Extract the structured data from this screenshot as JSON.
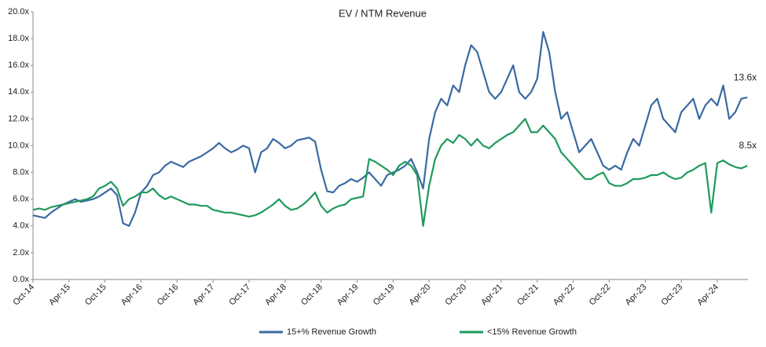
{
  "chart_data": {
    "type": "line",
    "title": "EV / NTM Revenue",
    "categories": [
      "Oct-14",
      null,
      null,
      null,
      null,
      null,
      "Apr-15",
      null,
      null,
      null,
      null,
      null,
      "Oct-15",
      null,
      null,
      null,
      null,
      null,
      "Apr-16",
      null,
      null,
      null,
      null,
      null,
      "Oct-16",
      null,
      null,
      null,
      null,
      null,
      "Apr-17",
      null,
      null,
      null,
      null,
      null,
      "Oct-17",
      null,
      null,
      null,
      null,
      null,
      "Apr-18",
      null,
      null,
      null,
      null,
      null,
      "Oct-18",
      null,
      null,
      null,
      null,
      null,
      "Apr-19",
      null,
      null,
      null,
      null,
      null,
      "Oct-19",
      null,
      null,
      null,
      null,
      null,
      "Apr-20",
      null,
      null,
      null,
      null,
      null,
      "Oct-20",
      null,
      null,
      null,
      null,
      null,
      "Apr-21",
      null,
      null,
      null,
      null,
      null,
      "Oct-21",
      null,
      null,
      null,
      null,
      null,
      "Apr-22",
      null,
      null,
      null,
      null,
      null,
      "Oct-22",
      null,
      null,
      null,
      null,
      null,
      "Apr-23",
      null,
      null,
      null,
      null,
      null,
      "Oct-23",
      null,
      null,
      null,
      null,
      null,
      "Apr-24",
      null,
      null,
      null,
      null,
      null
    ],
    "series": [
      {
        "name": "15+% Revenue Growth",
        "color": "#3a6aa3",
        "values": [
          4.8,
          4.7,
          4.6,
          5.0,
          5.3,
          5.6,
          5.8,
          6.0,
          5.8,
          5.9,
          6.0,
          6.2,
          6.5,
          6.8,
          6.3,
          4.2,
          4.0,
          5.0,
          6.5,
          7.0,
          7.8,
          8.0,
          8.5,
          8.8,
          8.6,
          8.4,
          8.8,
          9.0,
          9.2,
          9.5,
          9.8,
          10.2,
          9.8,
          9.5,
          9.7,
          10.0,
          9.8,
          8.0,
          9.5,
          9.8,
          10.5,
          10.2,
          9.8,
          10.0,
          10.4,
          10.5,
          10.6,
          10.3,
          8.2,
          6.6,
          6.5,
          7.0,
          7.2,
          7.5,
          7.3,
          7.6,
          8.0,
          7.5,
          7.0,
          7.8,
          8.0,
          8.2,
          8.5,
          9.0,
          8.0,
          6.8,
          10.5,
          12.5,
          13.5,
          13.0,
          14.5,
          14.0,
          16.0,
          17.5,
          17.0,
          15.5,
          14.0,
          13.5,
          14.0,
          15.0,
          16.0,
          14.0,
          13.5,
          14.0,
          15.0,
          18.5,
          17.0,
          14.0,
          12.0,
          12.5,
          11.0,
          9.5,
          10.0,
          10.5,
          9.5,
          8.5,
          8.2,
          8.5,
          8.2,
          9.5,
          10.5,
          10.0,
          11.5,
          13.0,
          13.5,
          12.0,
          11.5,
          11.0,
          12.5,
          13.0,
          13.5,
          12.0,
          13.0,
          13.5,
          13.0,
          14.5,
          12.0,
          12.5,
          13.5,
          13.6
        ],
        "value_labels": [
          null,
          null,
          null,
          null,
          null,
          null,
          null,
          null,
          null,
          null,
          null,
          null,
          null,
          null,
          null,
          null,
          null,
          null,
          null,
          null,
          null,
          null,
          null,
          null,
          null,
          null,
          null,
          null,
          null,
          null,
          null,
          null,
          null,
          null,
          null,
          null,
          null,
          null,
          null,
          null,
          null,
          null,
          null,
          null,
          null,
          null,
          null,
          null,
          null,
          null,
          null,
          null,
          null,
          null,
          null,
          null,
          null,
          null,
          null,
          null,
          null,
          null,
          null,
          null,
          null,
          null,
          null,
          null,
          null,
          null,
          null,
          null,
          null,
          null,
          null,
          null,
          null,
          null,
          null,
          null,
          null,
          null,
          null,
          null,
          null,
          null,
          null,
          null,
          null,
          null,
          null,
          null,
          null,
          null,
          null,
          null,
          null,
          null,
          null,
          null,
          null,
          null,
          null,
          null,
          null,
          null,
          null,
          null,
          null,
          null,
          null,
          null,
          null,
          null,
          null,
          null,
          null,
          null,
          null,
          "13.6x"
        ]
      },
      {
        "name": "<15% Revenue Growth",
        "color": "#1f9a5c",
        "values": [
          5.2,
          5.3,
          5.2,
          5.4,
          5.5,
          5.6,
          5.7,
          5.8,
          5.9,
          6.0,
          6.2,
          6.8,
          7.0,
          7.3,
          6.8,
          5.5,
          6.0,
          6.2,
          6.5,
          6.5,
          6.8,
          6.3,
          6.0,
          6.2,
          6.0,
          5.8,
          5.6,
          5.6,
          5.5,
          5.5,
          5.2,
          5.1,
          5.0,
          5.0,
          4.9,
          4.8,
          4.7,
          4.8,
          5.0,
          5.3,
          5.6,
          6.0,
          5.5,
          5.2,
          5.3,
          5.6,
          6.0,
          6.5,
          5.5,
          5.0,
          5.3,
          5.5,
          5.6,
          6.0,
          6.1,
          6.2,
          9.0,
          8.8,
          8.5,
          8.2,
          7.8,
          8.5,
          8.8,
          8.5,
          7.8,
          4.0,
          7.0,
          9.0,
          10.0,
          10.5,
          10.2,
          10.8,
          10.5,
          10.0,
          10.5,
          10.0,
          9.8,
          10.2,
          10.5,
          10.8,
          11.0,
          11.5,
          12.0,
          11.0,
          11.0,
          11.5,
          11.0,
          10.5,
          9.5,
          9.0,
          8.5,
          8.0,
          7.5,
          7.5,
          7.8,
          8.0,
          7.2,
          7.0,
          7.0,
          7.2,
          7.5,
          7.5,
          7.6,
          7.8,
          7.8,
          8.0,
          7.7,
          7.5,
          7.6,
          8.0,
          8.2,
          8.5,
          8.7,
          5.0,
          8.7,
          8.9,
          8.6,
          8.4,
          8.3,
          8.5
        ],
        "value_labels": [
          null,
          null,
          null,
          null,
          null,
          null,
          null,
          null,
          null,
          null,
          null,
          null,
          null,
          null,
          null,
          null,
          null,
          null,
          null,
          null,
          null,
          null,
          null,
          null,
          null,
          null,
          null,
          null,
          null,
          null,
          null,
          null,
          null,
          null,
          null,
          null,
          null,
          null,
          null,
          null,
          null,
          null,
          null,
          null,
          null,
          null,
          null,
          null,
          null,
          null,
          null,
          null,
          null,
          null,
          null,
          null,
          null,
          null,
          null,
          null,
          null,
          null,
          null,
          null,
          null,
          null,
          null,
          null,
          null,
          null,
          null,
          null,
          null,
          null,
          null,
          null,
          null,
          null,
          null,
          null,
          null,
          null,
          null,
          null,
          null,
          null,
          null,
          null,
          null,
          null,
          null,
          null,
          null,
          null,
          null,
          null,
          null,
          null,
          null,
          null,
          null,
          null,
          null,
          null,
          null,
          null,
          null,
          null,
          null,
          null,
          null,
          null,
          null,
          null,
          null,
          null,
          null,
          null,
          null,
          "8.5x"
        ]
      }
    ],
    "ylim": [
      0,
      20
    ],
    "yticks": [
      {
        "value": 0,
        "label": "0.0x"
      },
      {
        "value": 2,
        "label": "2.0x"
      },
      {
        "value": 4,
        "label": "4.0x"
      },
      {
        "value": 6,
        "label": "6.0x"
      },
      {
        "value": 8,
        "label": "8.0x"
      },
      {
        "value": 10,
        "label": "10.0x"
      },
      {
        "value": 12,
        "label": "12.0x"
      },
      {
        "value": 14,
        "label": "14.0x"
      },
      {
        "value": 16,
        "label": "16.0x"
      },
      {
        "value": 18,
        "label": "18.0x"
      },
      {
        "value": 20,
        "label": "20.0x"
      }
    ],
    "grid": false,
    "legend": "bottom"
  }
}
